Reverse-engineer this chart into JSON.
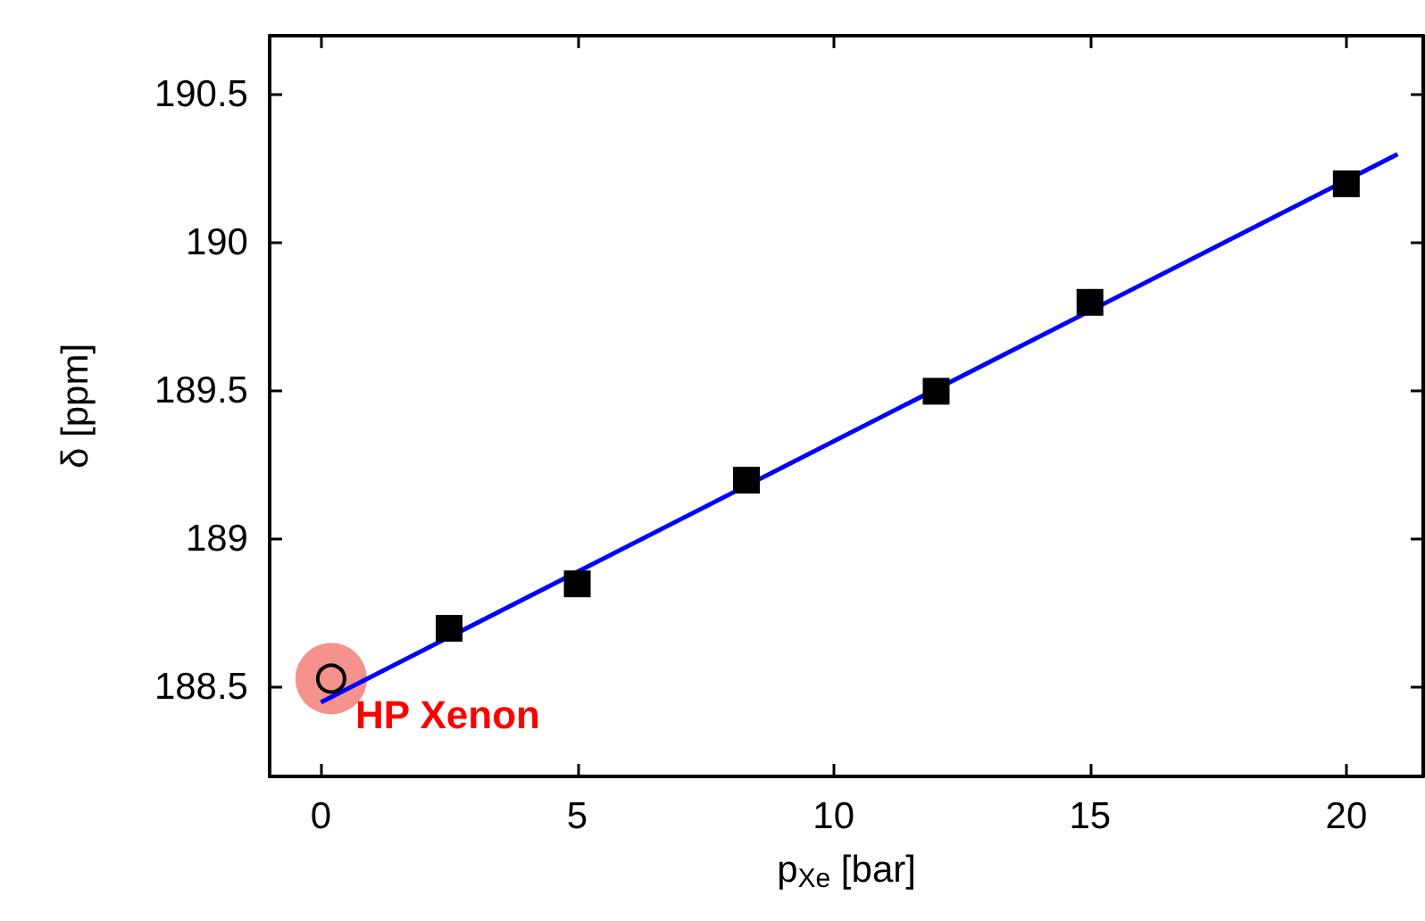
{
  "chart_data": {
    "type": "scatter",
    "xlabel": "p$_{Xe}$ [bar]",
    "ylabel": "δ [ppm]",
    "xlim": [
      -1,
      21.5
    ],
    "xticks": [
      0,
      5,
      10,
      15,
      20
    ],
    "ylim": [
      188.2,
      190.7
    ],
    "yticks": [
      188.5,
      189,
      189.5,
      190,
      190.5
    ],
    "series": [
      {
        "marker": "square",
        "color": "#000000",
        "x": [
          2.5,
          5,
          8.3,
          12,
          15,
          20
        ],
        "values": [
          188.7,
          188.85,
          189.2,
          189.5,
          189.8,
          190.2
        ]
      },
      {
        "marker": "circle",
        "color": "#000000",
        "x": [
          0.2
        ],
        "values": [
          188.53
        ]
      },
      {
        "type": "line",
        "marker": "none",
        "color": "#0000ff",
        "x": [
          0,
          21
        ],
        "values": [
          188.45,
          190.3
        ]
      }
    ],
    "annotations": [
      {
        "text": "HP Xenon",
        "x": 0.2,
        "y": 188.53
      }
    ]
  }
}
